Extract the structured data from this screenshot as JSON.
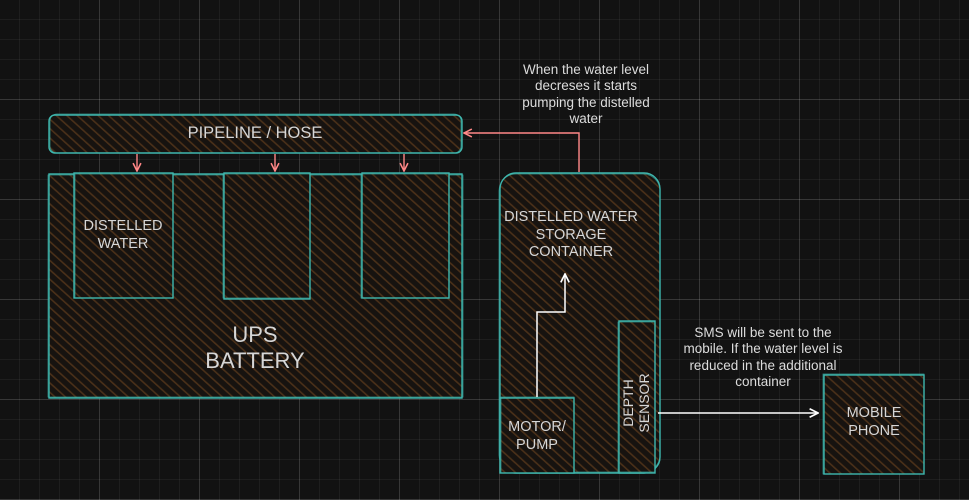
{
  "diagram": {
    "pipeline_label": "PIPELINE / HOSE",
    "container_label": "DISTELLED WATER",
    "battery_label_line1": "UPS",
    "battery_label_line2": "BATTERY",
    "storage_label": "DISTELLED WATER STORAGE CONTAINER",
    "pump_label": "MOTOR/ PUMP",
    "sensor_label_line1": "DEPTH",
    "sensor_label_line2": "SENSOR",
    "phone_label": "MOBILE PHONE",
    "pump_note": "When the water level decreses it starts pumping the distelled water",
    "sms_note": "SMS will be sent to the mobile. If the water level is reduced in the additional container"
  },
  "colors": {
    "shape_stroke": "#3fb8af",
    "fill_hatch": "#5a3a1e",
    "arrow_red": "#ff8787",
    "arrow_white": "#ffffff",
    "text": "#d6d6d6",
    "background": "#121212"
  }
}
